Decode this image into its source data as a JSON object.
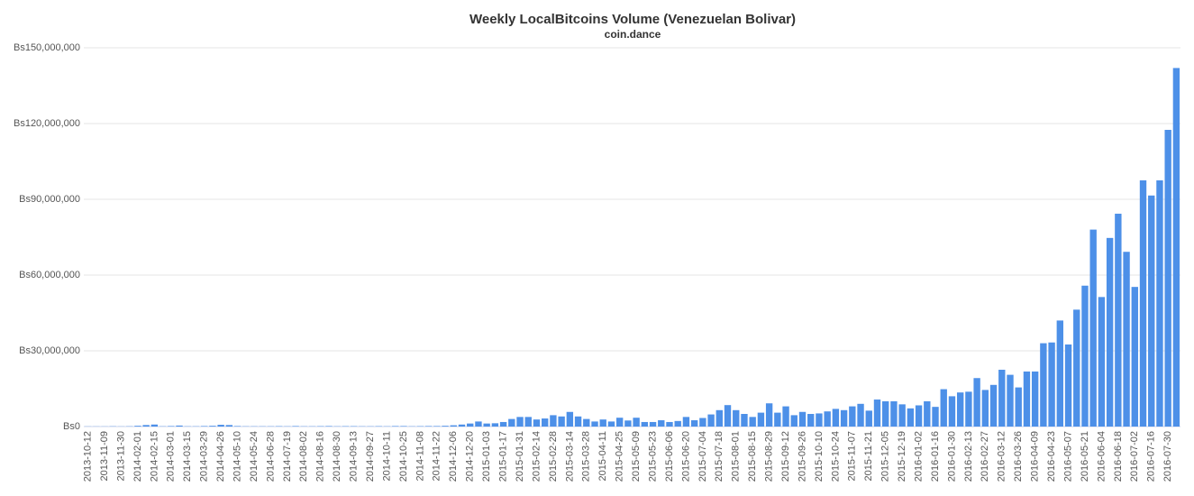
{
  "chart_data": {
    "type": "bar",
    "title": "Weekly LocalBitcoins Volume (Venezuelan Bolivar)",
    "subtitle": "coin.dance",
    "color": "#4d90e8",
    "grid": true,
    "ylim": [
      0,
      150000000
    ],
    "yticks": [
      {
        "value": 0,
        "label": "Bs0"
      },
      {
        "value": 30000000,
        "label": "Bs30,000,000"
      },
      {
        "value": 60000000,
        "label": "Bs60,000,000"
      },
      {
        "value": 90000000,
        "label": "Bs90,000,000"
      },
      {
        "value": 120000000,
        "label": "Bs120,000,000"
      },
      {
        "value": 150000000,
        "label": "Bs150,000,000"
      }
    ],
    "categories": [
      "2013-10-12",
      null,
      "2013-11-09",
      null,
      "2013-11-30",
      null,
      "2014-02-01",
      null,
      "2014-02-15",
      null,
      "2014-03-01",
      null,
      "2014-03-15",
      null,
      "2014-03-29",
      null,
      "2014-04-26",
      null,
      "2014-05-10",
      null,
      "2014-05-24",
      null,
      "2014-06-28",
      null,
      "2014-07-19",
      null,
      "2014-08-02",
      null,
      "2014-08-16",
      null,
      "2014-08-30",
      null,
      "2014-09-13",
      null,
      "2014-09-27",
      null,
      "2014-10-11",
      null,
      "2014-10-25",
      null,
      "2014-11-08",
      null,
      "2014-11-22",
      null,
      "2014-12-06",
      null,
      "2014-12-20",
      null,
      "2015-01-03",
      null,
      "2015-01-17",
      null,
      "2015-01-31",
      null,
      "2015-02-14",
      null,
      "2015-02-28",
      null,
      "2015-03-14",
      null,
      "2015-03-28",
      null,
      "2015-04-11",
      null,
      "2015-04-25",
      null,
      "2015-05-09",
      null,
      "2015-05-23",
      null,
      "2015-06-06",
      null,
      "2015-06-20",
      null,
      "2015-07-04",
      null,
      "2015-07-18",
      null,
      "2015-08-01",
      null,
      "2015-08-15",
      null,
      "2015-08-29",
      null,
      "2015-09-12",
      null,
      "2015-09-26",
      null,
      "2015-10-10",
      null,
      "2015-10-24",
      null,
      "2015-11-07",
      null,
      "2015-11-21",
      null,
      "2015-12-05",
      null,
      "2015-12-19",
      null,
      "2016-01-02",
      null,
      "2016-01-16",
      null,
      "2016-01-30",
      null,
      "2016-02-13",
      null,
      "2016-02-27",
      null,
      "2016-03-12",
      null,
      "2016-03-26",
      null,
      "2016-04-09",
      null,
      "2016-04-23",
      null,
      "2016-05-07",
      null,
      "2016-05-21",
      null,
      "2016-06-04",
      null,
      "2016-06-18",
      null,
      "2016-07-02",
      null,
      "2016-07-16",
      null,
      "2016-07-30",
      null
    ],
    "values": [
      50000,
      50000,
      50000,
      100000,
      50000,
      100000,
      300000,
      600000,
      800000,
      100000,
      200000,
      400000,
      100000,
      100000,
      200000,
      300000,
      700000,
      600000,
      200000,
      100000,
      100000,
      100000,
      100000,
      150000,
      100000,
      200000,
      100000,
      100000,
      150000,
      200000,
      100000,
      150000,
      150000,
      100000,
      100000,
      150000,
      100000,
      200000,
      200000,
      100000,
      150000,
      200000,
      200000,
      300000,
      500000,
      800000,
      1200000,
      2000000,
      1200000,
      1300000,
      1800000,
      3000000,
      3800000,
      3800000,
      2800000,
      3200000,
      4500000,
      4000000,
      5800000,
      4000000,
      3000000,
      2000000,
      2800000,
      2000000,
      3500000,
      2400000,
      3500000,
      1800000,
      1800000,
      2500000,
      1800000,
      2200000,
      3800000,
      2500000,
      3400000,
      4800000,
      6500000,
      8500000,
      6500000,
      5000000,
      3800000,
      5500000,
      9200000,
      5500000,
      8000000,
      4500000,
      5800000,
      5000000,
      5200000,
      6000000,
      7000000,
      6500000,
      8000000,
      9000000,
      6300000,
      10700000,
      10000000,
      10000000,
      8800000,
      7200000,
      8400000,
      10000000,
      7800000,
      14800000,
      12000000,
      13500000,
      13800000,
      19200000,
      14500000,
      16500000,
      22500000,
      20500000,
      15500000,
      21800000,
      21800000,
      33000000,
      33300000,
      42000000,
      32500000,
      46300000,
      55800000,
      78000000,
      51300000,
      74700000,
      84300000,
      69200000,
      55300000,
      97500000,
      91500000,
      97500000,
      117500000,
      142000000
    ]
  }
}
